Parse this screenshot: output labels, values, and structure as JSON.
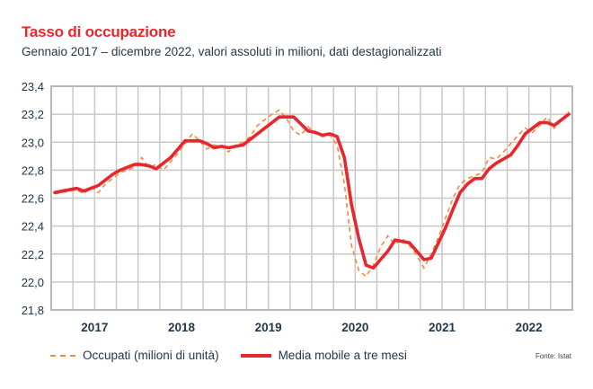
{
  "header": {
    "title": "Tasso di occupazione",
    "subtitle": "Gennaio 2017 – dicembre 2022, valori assoluti in milioni, dati destagionalizzati"
  },
  "legend": {
    "series_a": "Occupati (milioni di unità)",
    "series_b": "Media mobile a tre mesi"
  },
  "source": "Fonte: Istat",
  "colors": {
    "title": "#e8262e",
    "occupati": "#f28c3b",
    "media": "#e8262e",
    "grid": "#c8c8c8",
    "text": "#23384a"
  },
  "chart_data": {
    "type": "line",
    "title": "Tasso di occupazione",
    "subtitle": "Gennaio 2017 – dicembre 2022, valori assoluti in milioni, dati destagionalizzati",
    "xlabel": "",
    "ylabel": "",
    "ylim": [
      21.8,
      23.4
    ],
    "yticks": [
      "21,8",
      "22,0",
      "22,2",
      "22,4",
      "22,6",
      "22,8",
      "23,0",
      "23,2",
      "23,4"
    ],
    "ytick_values": [
      21.8,
      22.0,
      22.2,
      22.4,
      22.6,
      22.8,
      23.0,
      23.2,
      23.4
    ],
    "xticks": [
      "2017",
      "2018",
      "2019",
      "2020",
      "2021",
      "2022"
    ],
    "grid": true,
    "x_unit": "month index from Jan 2017 (0..71)",
    "series": [
      {
        "name": "Occupati (milioni di unità)",
        "style": "dashed",
        "values": [
          22.63,
          22.64,
          22.65,
          22.66,
          22.63,
          22.68,
          22.64,
          22.7,
          22.74,
          22.78,
          22.8,
          22.82,
          22.89,
          22.82,
          22.84,
          22.8,
          22.86,
          22.92,
          22.99,
          23.06,
          23.01,
          22.95,
          22.98,
          22.97,
          22.93,
          22.98,
          23.0,
          23.04,
          23.12,
          23.16,
          23.2,
          23.23,
          23.17,
          23.08,
          23.05,
          23.11,
          23.06,
          23.04,
          23.05,
          22.98,
          22.7,
          22.26,
          22.08,
          22.04,
          22.12,
          22.25,
          22.33,
          22.27,
          22.31,
          22.26,
          22.19,
          22.1,
          22.2,
          22.32,
          22.46,
          22.6,
          22.7,
          22.74,
          22.76,
          22.78,
          22.89,
          22.88,
          22.93,
          22.99,
          23.05,
          23.1,
          23.07,
          23.12,
          23.18,
          23.1,
          23.16,
          23.22
        ]
      },
      {
        "name": "Media mobile a tre mesi",
        "style": "solid",
        "values": [
          22.64,
          22.65,
          22.66,
          22.67,
          22.65,
          22.67,
          22.69,
          22.73,
          22.77,
          22.8,
          22.82,
          22.84,
          22.84,
          22.83,
          22.81,
          22.85,
          22.89,
          22.95,
          23.01,
          23.01,
          23.01,
          22.99,
          22.96,
          22.97,
          22.96,
          22.97,
          22.98,
          23.02,
          23.06,
          23.1,
          23.14,
          23.18,
          23.18,
          23.18,
          23.13,
          23.08,
          23.07,
          23.05,
          23.06,
          23.04,
          22.89,
          22.55,
          22.31,
          22.12,
          22.1,
          22.16,
          22.22,
          22.3,
          22.29,
          22.28,
          22.22,
          22.16,
          22.17,
          22.28,
          22.39,
          22.52,
          22.64,
          22.7,
          22.74,
          22.74,
          22.81,
          22.85,
          22.88,
          22.91,
          22.98,
          23.06,
          23.1,
          23.14,
          23.14,
          23.12,
          23.16,
          23.2
        ]
      }
    ]
  }
}
